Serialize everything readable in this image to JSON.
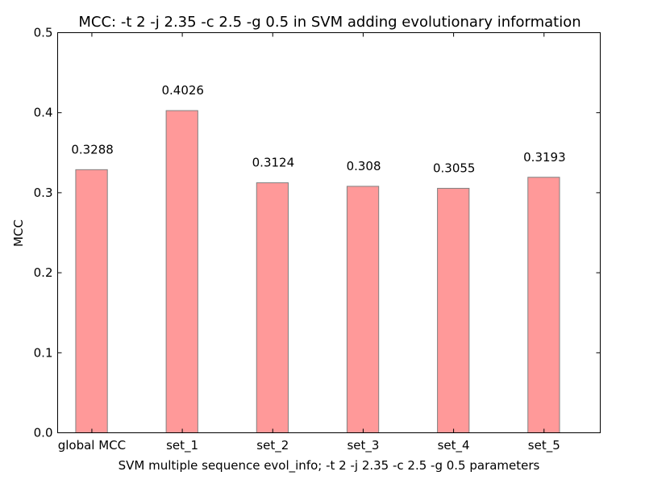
{
  "chart_data": {
    "type": "bar",
    "title": "MCC: -t 2 -j 2.35 -c 2.5 -g 0.5 in SVM adding evolutionary information",
    "xlabel": "SVM multiple sequence evol_info; -t 2 -j 2.35 -c 2.5 -g 0.5 parameters",
    "ylabel": "MCC",
    "categories": [
      "global MCC",
      "set_1",
      "set_2",
      "set_3",
      "set_4",
      "set_5"
    ],
    "values": [
      0.3288,
      0.4026,
      0.3124,
      0.308,
      0.3055,
      0.3193
    ],
    "data_labels": [
      "0.3288",
      "0.4026",
      "0.3124",
      "0.308",
      "0.3055",
      "0.3193"
    ],
    "ylim": [
      0,
      0.5
    ],
    "yticks": [
      0.0,
      0.1,
      0.2,
      0.3,
      0.4,
      0.5
    ],
    "ytick_labels": [
      "0.0",
      "0.1",
      "0.2",
      "0.3",
      "0.4",
      "0.5"
    ],
    "grid": false,
    "colors": {
      "bar_fill": "#ff9999",
      "bar_edge": "#808080",
      "axes": "#000000"
    }
  }
}
